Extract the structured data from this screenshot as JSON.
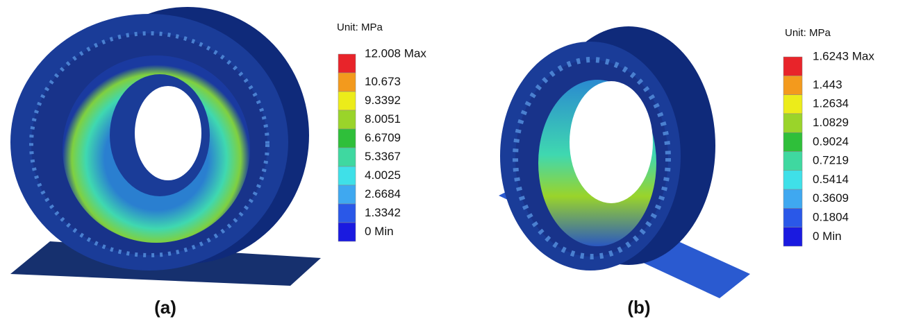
{
  "panels": [
    {
      "unit": "Unit: MPa",
      "legend": [
        "12.008 Max",
        "10.673",
        "9.3392",
        "8.0051",
        "6.6709",
        "5.3367",
        "4.0025",
        "2.6684",
        "1.3342",
        "0 Min"
      ],
      "caption": "(a)"
    },
    {
      "unit": "Unit: MPa",
      "legend": [
        "1.6243  Max",
        "1.443",
        "1.2634",
        "1.0829",
        "0.9024",
        "0.7219",
        "0.5414",
        "0.3609",
        "0.1804",
        "0 Min"
      ],
      "caption": "(b)"
    }
  ]
}
